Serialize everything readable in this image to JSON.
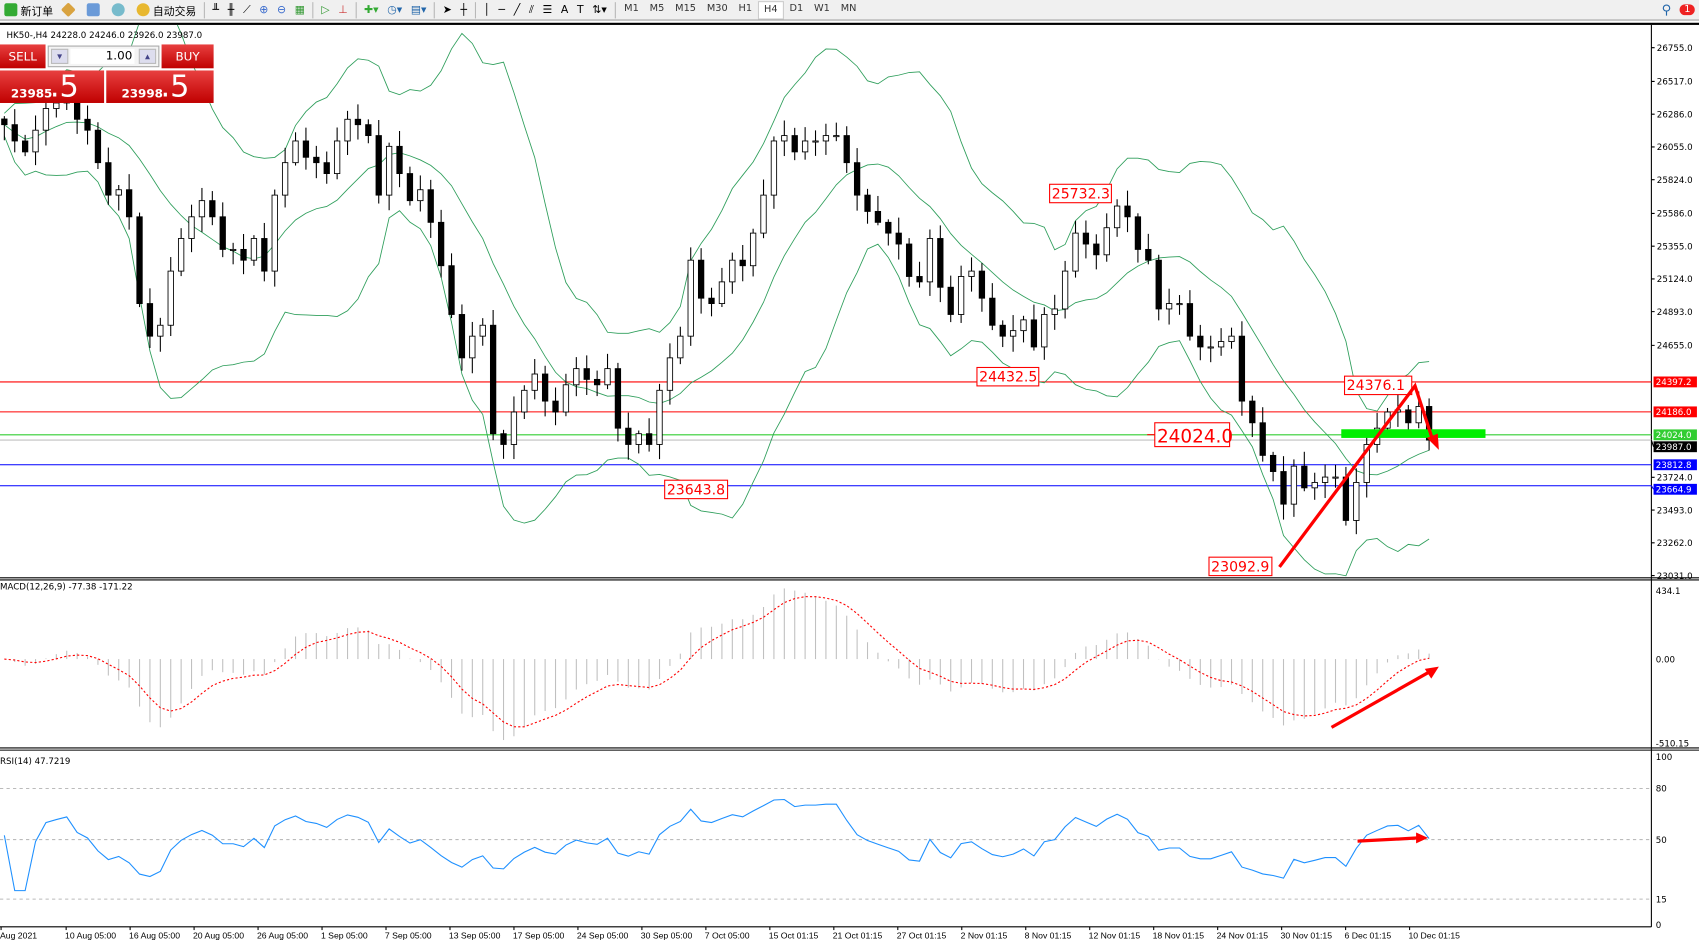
{
  "toolbar": {
    "new_order": "新订单",
    "auto_trading": "自动交易",
    "timeframes": [
      "M1",
      "M5",
      "M15",
      "M30",
      "H1",
      "H4",
      "D1",
      "W1",
      "MN"
    ],
    "active_timeframe": "H4",
    "notification_count": "1"
  },
  "chart": {
    "header": "HK50-,H4  24228.0 24246.0 23926.0 23987.0",
    "one_click": {
      "sell_label": "SELL",
      "buy_label": "BUY",
      "lot": "1.00",
      "sell_price_main": "23985",
      "sell_price_big": ".5",
      "buy_price_main": "23998",
      "buy_price_big": ".5"
    },
    "price_axis": [
      "26755.0",
      "26517.0",
      "26286.0",
      "26055.0",
      "25824.0",
      "25586.0",
      "25355.0",
      "25124.0",
      "24893.0",
      "24655.0",
      "23724.0",
      "23493.0",
      "23262.0",
      "23031.0"
    ],
    "hlines": [
      {
        "price": 24397.2,
        "label": "24397.2",
        "color": "#ff0000"
      },
      {
        "price": 24186.0,
        "label": "24186.0",
        "color": "#ff0000"
      },
      {
        "price": 24024.0,
        "label": "24024.0",
        "color": "#32cd32"
      },
      {
        "price": 23987.0,
        "label": "23987.0",
        "color": "#000000"
      },
      {
        "price": 23812.8,
        "label": "23812.8",
        "color": "#0000ff"
      },
      {
        "price": 23664.9,
        "label": "23664.9",
        "color": "#0000ff"
      }
    ],
    "annotations": [
      "25732.3",
      "24432.5",
      "23643.8",
      "23092.9",
      "24376.1",
      "24024.0"
    ],
    "dates": [
      "Aug 2021",
      "10 Aug 05:00",
      "16 Aug 05:00",
      "20 Aug 05:00",
      "26 Aug 05:00",
      "1 Sep 05:00",
      "7 Sep 05:00",
      "13 Sep 05:00",
      "17 Sep 05:00",
      "24 Sep 05:00",
      "30 Sep 05:00",
      "7 Oct 05:00",
      "15 Oct 01:15",
      "21 Oct 01:15",
      "27 Oct 01:15",
      "2 Nov 01:15",
      "8 Nov 01:15",
      "12 Nov 01:15",
      "18 Nov 01:15",
      "24 Nov 01:15",
      "30 Nov 01:15",
      "6 Dec 01:15",
      "10 Dec 01:15"
    ],
    "colors": {
      "bands": "#2e9e5b",
      "macd_hist": "#c0c0c0",
      "macd_signal": "#ff0000",
      "rsi": "#1e90ff",
      "annotation": "#ff0000",
      "support_zone": "#00ee00"
    }
  },
  "macd": {
    "header": "MACD(12,26,9) -77.38 -171.22",
    "axis": [
      "434.1",
      "0.00",
      "-510.15"
    ]
  },
  "rsi": {
    "header": "RSI(14) 47.7219",
    "axis": [
      "100",
      "80",
      "50",
      "15",
      "0"
    ]
  },
  "chart_data": {
    "type": "candlestick",
    "symbol": "HK50-",
    "timeframe": "H4",
    "ylim": [
      23031,
      26755
    ],
    "closes": [
      26212,
      26097,
      26020,
      26173,
      26326,
      26365,
      26403,
      26250,
      26173,
      25944,
      25715,
      25753,
      25562,
      24950,
      24720,
      24797,
      25179,
      25409,
      25562,
      25676,
      25562,
      25332,
      25332,
      25256,
      25409,
      25179,
      25715,
      25944,
      26097,
      25982,
      25944,
      25867,
      26097,
      26250,
      26212,
      26135,
      25715,
      26059,
      25867,
      25676,
      25753,
      25523,
      25217,
      24873,
      24567,
      24720,
      24797,
      24032,
      23956,
      24185,
      24338,
      24453,
      24262,
      24185,
      24377,
      24491,
      24415,
      24377,
      24491,
      24071,
      23956,
      24032,
      23956,
      24338,
      24567,
      24720,
      25256,
      24988,
      24950,
      25103,
      25256,
      25217,
      25447,
      25715,
      26097,
      26135,
      26020,
      26097,
      26097,
      26135,
      26135,
      25944,
      25715,
      25600,
      25523,
      25447,
      25370,
      25141,
      25103,
      25409,
      25065,
      24873,
      25141,
      25179,
      24988,
      24797,
      24720,
      24759,
      24835,
      24644,
      24873,
      24912,
      25179,
      25447,
      25370,
      25294,
      25485,
      25638,
      25562,
      25332,
      25256,
      24912,
      24950,
      24950,
      24720,
      24644,
      24644,
      24682,
      24720,
      24262,
      24109,
      23879,
      23765,
      23535,
      23803,
      23650,
      23688,
      23726,
      23726,
      23420,
      23688,
      23956,
      24071,
      24185,
      24200,
      24109,
      24224,
      23987
    ]
  }
}
